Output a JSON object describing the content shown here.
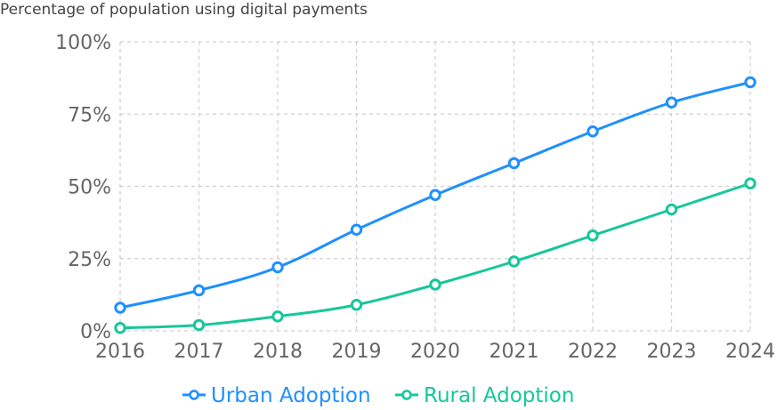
{
  "chart_data": {
    "type": "line",
    "title": "",
    "subtitle": "Percentage of population using digital payments",
    "xlabel": "",
    "ylabel": "",
    "categories": [
      "2016",
      "2017",
      "2018",
      "2019",
      "2020",
      "2021",
      "2022",
      "2023",
      "2024"
    ],
    "ylim": [
      0,
      100
    ],
    "y_ticks": [
      0,
      25,
      50,
      75,
      100
    ],
    "y_tick_labels": [
      "0%",
      "25%",
      "50%",
      "75%",
      "100%"
    ],
    "grid": true,
    "legend_position": "bottom-center",
    "series": [
      {
        "name": "Urban Adoption",
        "color": "#1e90ff",
        "values": [
          8,
          14,
          22,
          35,
          47,
          58,
          69,
          79,
          86
        ]
      },
      {
        "name": "Rural Adoption",
        "color": "#16c79a",
        "values": [
          1,
          2,
          5,
          9,
          16,
          24,
          33,
          42,
          51
        ]
      }
    ]
  }
}
